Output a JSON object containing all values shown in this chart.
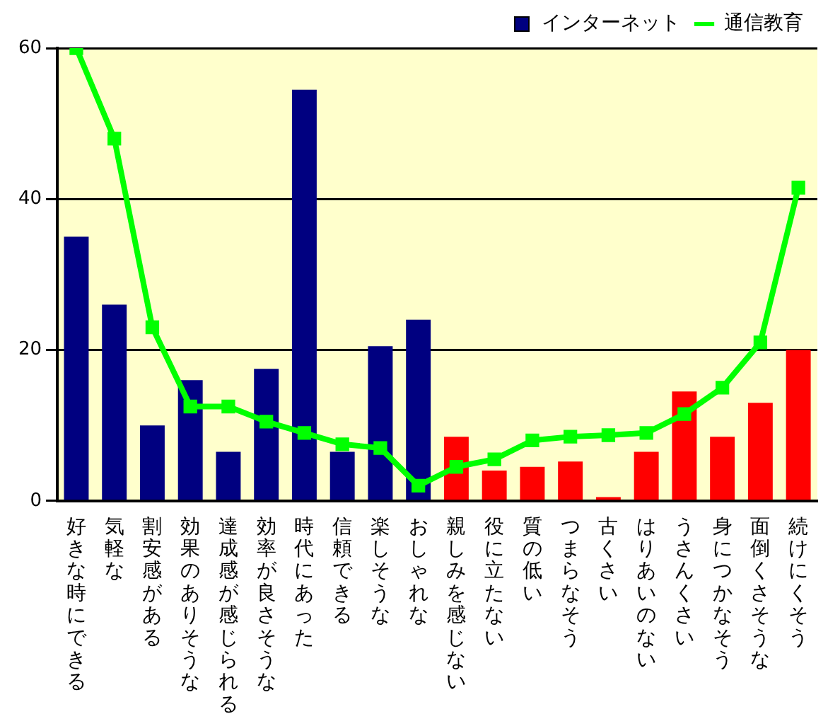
{
  "chart_data": {
    "type": "bar",
    "categories": [
      "好きな時にできる",
      "気軽な",
      "割安感がある",
      "効果のありそうな",
      "達成感が感じられる",
      "効率が良さそうな",
      "時代にあった",
      "信頼できる",
      "楽しそうな",
      "おしゃれな",
      "親しみを感じない",
      "役に立たない",
      "質の低い",
      "つまらなそう",
      "古くさい",
      "はりあいのない",
      "うさんくさい",
      "身につかなそう",
      "面倒くさそうな",
      "続けにくそう"
    ],
    "series": [
      {
        "name": "インターネット",
        "color": "#000080",
        "colors": [
          "#000080",
          "#000080",
          "#000080",
          "#000080",
          "#000080",
          "#000080",
          "#000080",
          "#000080",
          "#000080",
          "#000080",
          "#ff0000",
          "#ff0000",
          "#ff0000",
          "#ff0000",
          "#ff0000",
          "#ff0000",
          "#ff0000",
          "#ff0000",
          "#ff0000",
          "#ff0000"
        ],
        "values": [
          35,
          26,
          10,
          16,
          6.5,
          17.5,
          54.5,
          6.5,
          20.5,
          24,
          8.5,
          4,
          4.5,
          5.2,
          0.5,
          6.5,
          14.5,
          8.5,
          13,
          20
        ]
      },
      {
        "name": "通信教育",
        "type": "line",
        "color": "#00ff00",
        "values": [
          60,
          48,
          23,
          12.5,
          12.5,
          10.5,
          9,
          7.5,
          7,
          2,
          4.5,
          5.5,
          8,
          8.5,
          8.7,
          9,
          11.5,
          15,
          21,
          41.5
        ]
      }
    ],
    "ylim": [
      0,
      60
    ],
    "yticks": [
      0,
      20,
      40,
      60
    ],
    "grid": "y",
    "legend": "top right",
    "marker": "square",
    "line_style": "solid"
  }
}
